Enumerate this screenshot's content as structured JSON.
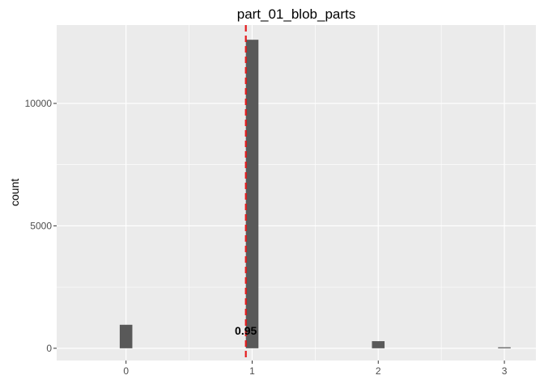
{
  "chart_data": {
    "type": "bar",
    "title": "part_01_blob_parts",
    "xlabel": "",
    "ylabel": "count",
    "x": [
      0,
      1,
      2,
      3
    ],
    "values": [
      960,
      12600,
      290,
      40
    ],
    "xticks": [
      "0",
      "1",
      "2",
      "3"
    ],
    "yticks": [
      {
        "value": 0,
        "label": "0"
      },
      {
        "value": 5000,
        "label": "5000"
      },
      {
        "value": 10000,
        "label": "10000"
      }
    ],
    "xlim": [
      -0.55,
      3.25
    ],
    "ylim": [
      -500,
      13200
    ],
    "grid": true,
    "colors": {
      "bar": "#595959",
      "panel": "#ebebeb",
      "grid": "#ffffff",
      "vline": "#e41a1c"
    },
    "reference_line": {
      "x": 0.95,
      "style": "dashed"
    },
    "annotation": {
      "text": "0.95",
      "x": 0.95,
      "y": 550
    }
  }
}
